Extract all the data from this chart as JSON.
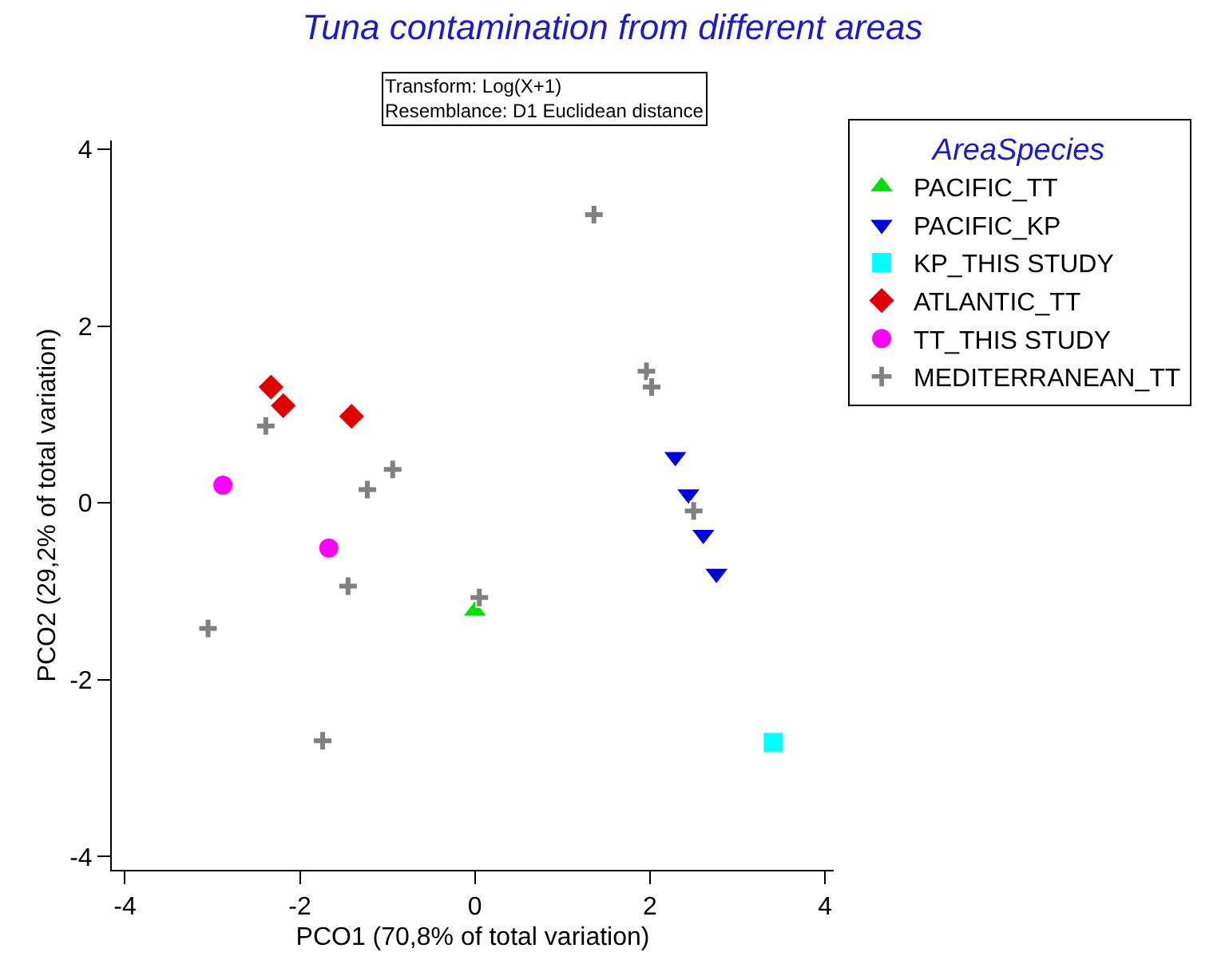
{
  "chart_data": {
    "type": "scatter",
    "title": "Tuna contamination from different areas",
    "annotations": [
      "Transform: Log(X+1)",
      "Resemblance: D1 Euclidean distance"
    ],
    "xlabel": "PCO1 (70,8% of total variation)",
    "ylabel": "PCO2 (29,2% of total variation)",
    "legend_title": "AreaSpecies",
    "legend": "top right",
    "xlim": [
      -4.15,
      4.1
    ],
    "ylim": [
      -4.15,
      4.1
    ],
    "xticks": [
      -4,
      -2,
      0,
      2,
      4
    ],
    "yticks": [
      -4,
      -2,
      0,
      2,
      4
    ],
    "series": [
      {
        "name": "PACIFIC_TT",
        "color": "#00e000",
        "marker": "triangle",
        "x": [
          0.0
        ],
        "values": [
          -1.22
        ]
      },
      {
        "name": "PACIFIC_KP",
        "color": "#0000e0",
        "marker": "triangle-down",
        "x": [
          2.29,
          2.44,
          2.61,
          2.76
        ],
        "values": [
          0.52,
          0.1,
          -0.36,
          -0.8
        ]
      },
      {
        "name": "KP_THIS STUDY",
        "color": "#00ffff",
        "marker": "square",
        "x": [
          3.41
        ],
        "values": [
          -2.71
        ]
      },
      {
        "name": "ATLANTIC_TT",
        "color": "#e00000",
        "marker": "diamond",
        "x": [
          -2.33,
          -2.19,
          -1.41
        ],
        "values": [
          1.31,
          1.1,
          0.98
        ]
      },
      {
        "name": "TT_THIS STUDY",
        "color": "#ff00ff",
        "marker": "circle",
        "x": [
          -2.88,
          -1.67
        ],
        "values": [
          0.2,
          -0.51
        ]
      },
      {
        "name": "MEDITERRANEAN_TT",
        "color": "#808080",
        "marker": "cross",
        "x": [
          -2.39,
          -0.94,
          -1.23,
          -1.45,
          -3.05,
          -1.74,
          0.05,
          1.36,
          1.96,
          2.02,
          2.5
        ],
        "values": [
          0.87,
          0.38,
          0.15,
          -0.94,
          -1.42,
          -2.69,
          -1.07,
          3.26,
          1.49,
          1.31,
          -0.09
        ]
      }
    ]
  }
}
